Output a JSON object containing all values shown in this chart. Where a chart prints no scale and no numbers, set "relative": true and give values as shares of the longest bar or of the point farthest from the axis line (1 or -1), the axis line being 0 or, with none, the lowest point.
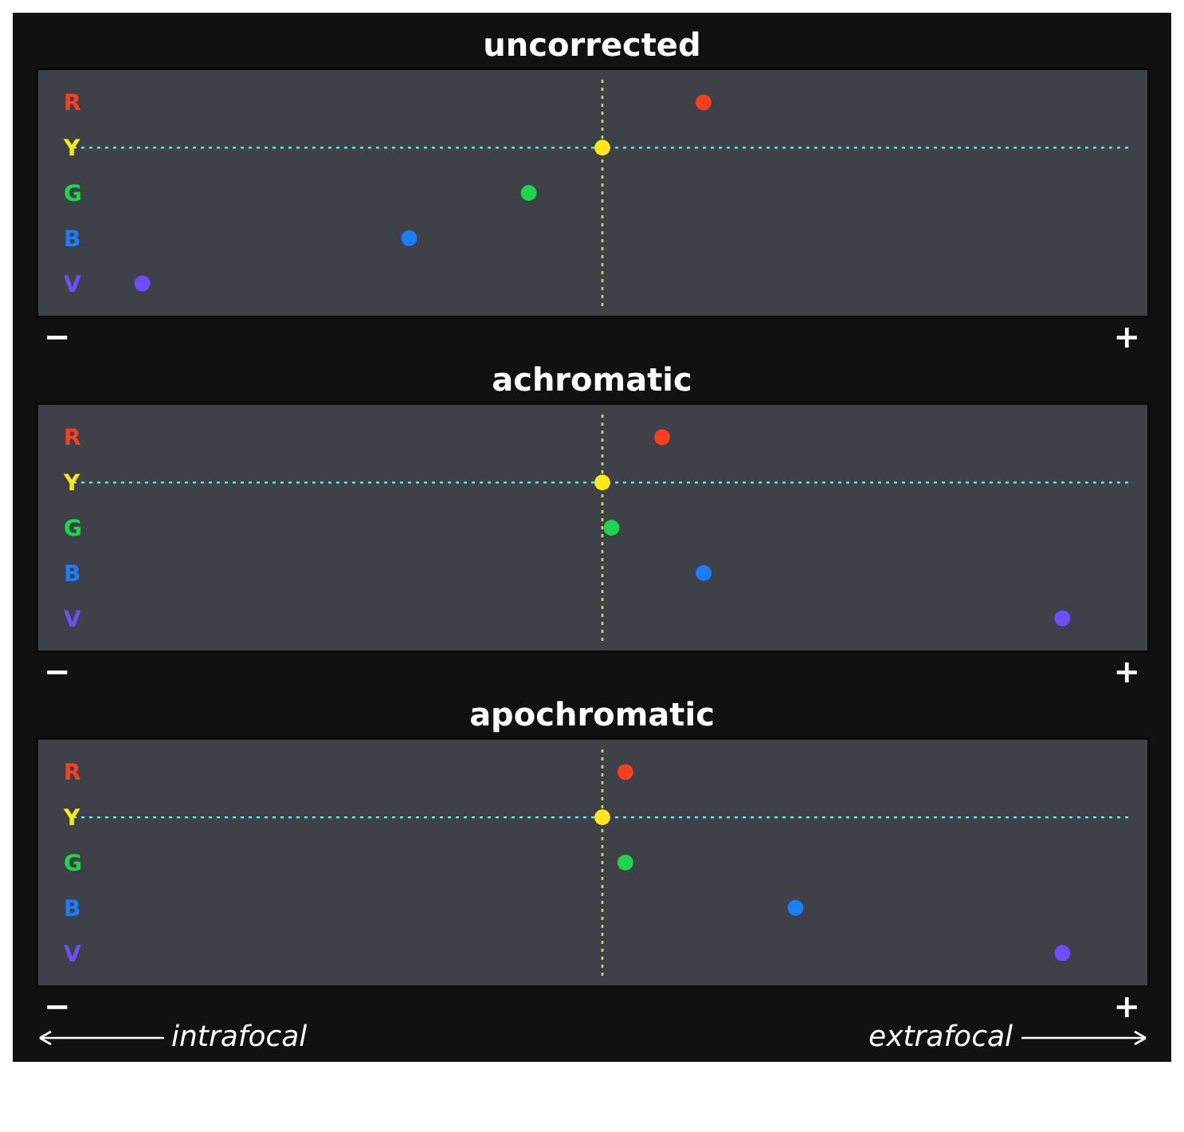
{
  "chart_data": [
    {
      "type": "scatter",
      "title": "uncorrected",
      "orientation": "horizontal",
      "relative": true,
      "marker": "circle",
      "categories": [
        "R",
        "Y",
        "G",
        "B",
        "V"
      ],
      "values": [
        0.22,
        0,
        -0.16,
        -0.42,
        -1
      ],
      "colors": [
        "#ff3d1f",
        "#ffe81a",
        "#1ed64a",
        "#1a7fff",
        "#6e4dff"
      ],
      "ref_lines": [
        {
          "axis": "x",
          "value": 0,
          "color": "#c5e24a",
          "line_style": "dotted"
        },
        {
          "axis": "y",
          "value": "Y",
          "color": "#5fe3e3",
          "line_style": "dotted"
        }
      ],
      "annotations": [
        "−",
        "+"
      ]
    },
    {
      "type": "scatter",
      "title": "achromatic",
      "orientation": "horizontal",
      "relative": true,
      "marker": "circle",
      "categories": [
        "R",
        "Y",
        "G",
        "B",
        "V"
      ],
      "values": [
        0.13,
        0,
        0.02,
        0.22,
        1
      ],
      "colors": [
        "#ff3d1f",
        "#ffe81a",
        "#1ed64a",
        "#1a7fff",
        "#6e4dff"
      ],
      "ref_lines": [
        {
          "axis": "x",
          "value": 0,
          "color": "#c5e24a",
          "line_style": "dotted"
        },
        {
          "axis": "y",
          "value": "Y",
          "color": "#5fe3e3",
          "line_style": "dotted"
        }
      ],
      "annotations": [
        "−",
        "+"
      ]
    },
    {
      "type": "scatter",
      "title": "apochromatic",
      "orientation": "horizontal",
      "relative": true,
      "marker": "circle",
      "categories": [
        "R",
        "Y",
        "G",
        "B",
        "V"
      ],
      "values": [
        0.05,
        0,
        0.05,
        0.42,
        1
      ],
      "colors": [
        "#ff3d1f",
        "#ffe81a",
        "#1ed64a",
        "#1a7fff",
        "#6e4dff"
      ],
      "ref_lines": [
        {
          "axis": "x",
          "value": 0,
          "color": "#c5e24a",
          "line_style": "dotted"
        },
        {
          "axis": "y",
          "value": "Y",
          "color": "#5fe3e3",
          "line_style": "dotted"
        }
      ],
      "annotations": [
        "−",
        "+",
        "intrafocal",
        "extrafocal"
      ]
    }
  ]
}
